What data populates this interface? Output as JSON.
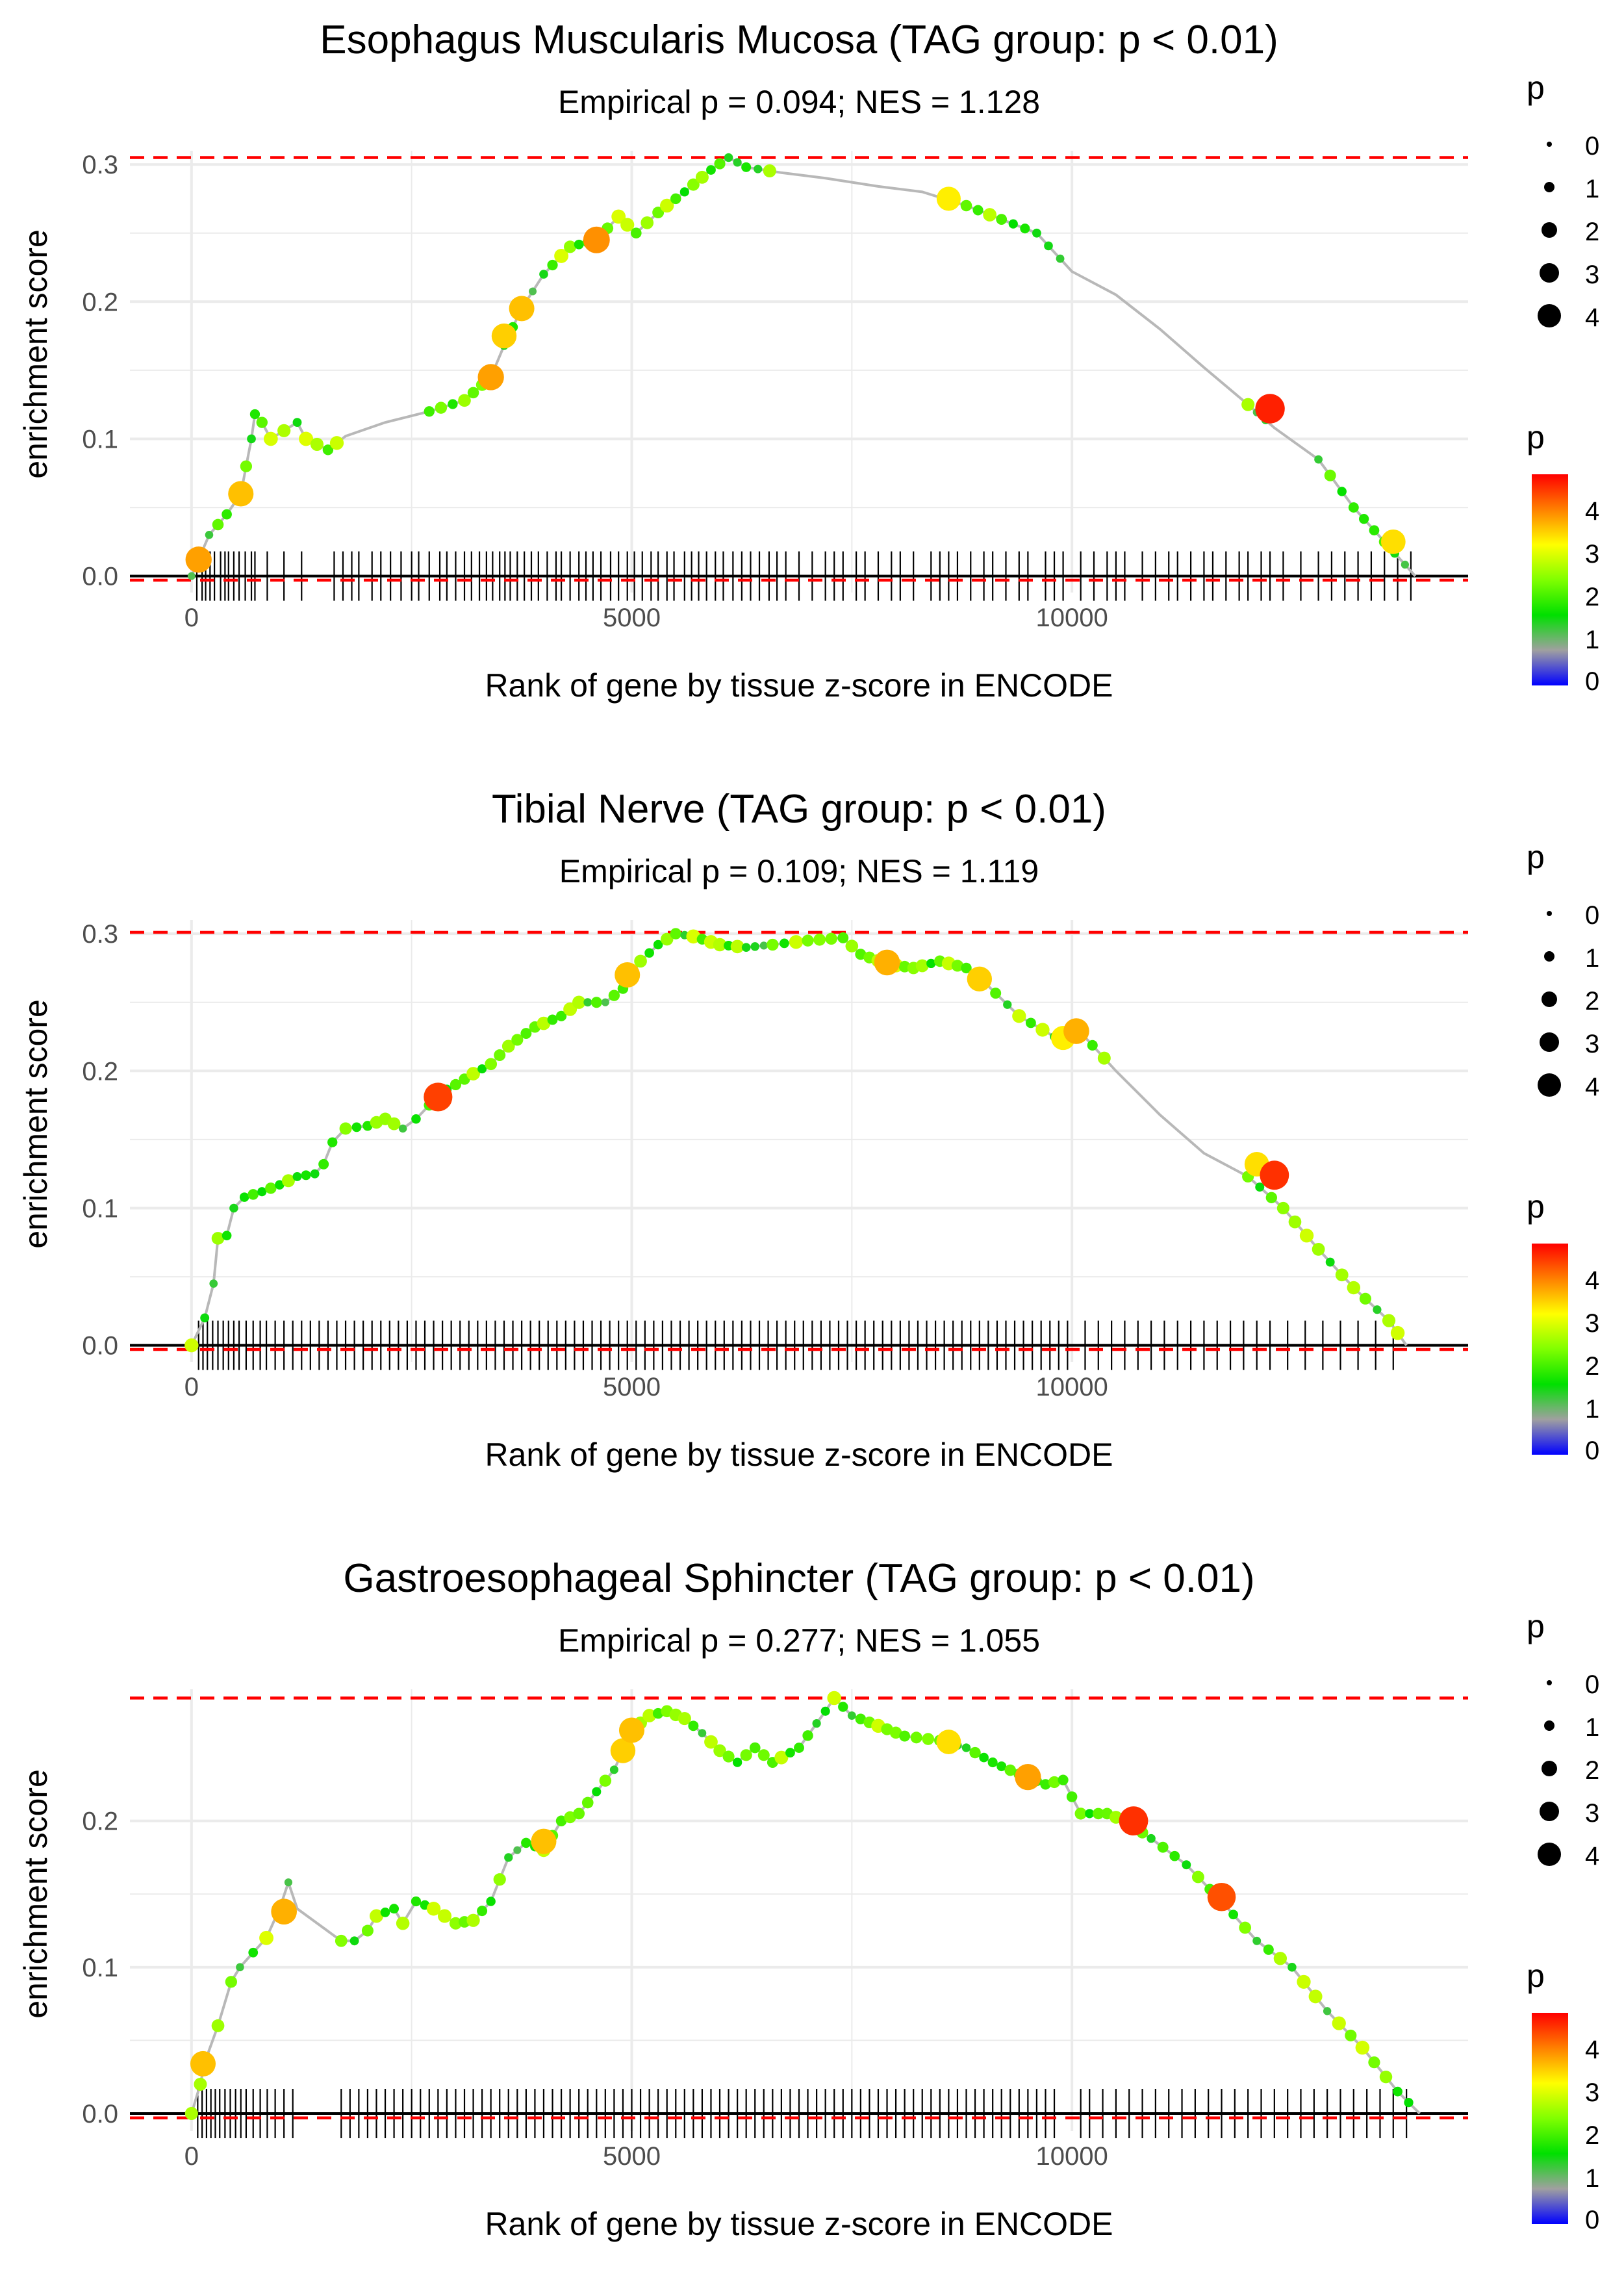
{
  "legend_title": "p",
  "size_legend_labels": [
    "0",
    "1",
    "2",
    "3",
    "4"
  ],
  "color_legend_labels": [
    "4",
    "3",
    "2",
    "1",
    "0"
  ],
  "colorbar_stops": [
    "#ff0000",
    "#ff8000",
    "#ffff00",
    "#80ff00",
    "#00e000",
    "#a0a0a0",
    "#0000ff"
  ],
  "colors": {
    "grid": "#ebebeb",
    "curve": "#b8b8b8",
    "threshold_line": "#ff0000",
    "rug": "#000000",
    "axis_text": "#4d4d4d"
  },
  "chart_data": [
    {
      "type": "line",
      "title": "Esophagus Muscularis Mucosa (TAG group: p < 0.01)",
      "subtitle": "Empirical p = 0.094; NES = 1.128",
      "xlabel": "Rank of gene by tissue z-score in ENCODE",
      "ylabel": "enrichment score",
      "xlim": [
        -700,
        14500
      ],
      "ylim": [
        -0.012,
        0.31
      ],
      "x_ticks": [
        0,
        5000,
        10000
      ],
      "x_tick_labels": [
        "0",
        "5000",
        "10000"
      ],
      "y_ticks": [
        0.0,
        0.1,
        0.2,
        0.3
      ],
      "y_tick_labels": [
        "0.0",
        "0.1",
        "0.2",
        "0.3"
      ],
      "max_es": 0.305,
      "min_es": -0.003,
      "curve": [
        [
          0,
          0
        ],
        [
          80,
          0.012
        ],
        [
          200,
          0.03
        ],
        [
          400,
          0.045
        ],
        [
          560,
          0.06
        ],
        [
          620,
          0.08
        ],
        [
          680,
          0.1
        ],
        [
          720,
          0.118
        ],
        [
          800,
          0.112
        ],
        [
          900,
          0.1
        ],
        [
          1050,
          0.106
        ],
        [
          1200,
          0.112
        ],
        [
          1300,
          0.1
        ],
        [
          1550,
          0.092
        ],
        [
          1750,
          0.102
        ],
        [
          2200,
          0.112
        ],
        [
          2700,
          0.12
        ],
        [
          3100,
          0.128
        ],
        [
          3400,
          0.145
        ],
        [
          3550,
          0.168
        ],
        [
          3750,
          0.195
        ],
        [
          4000,
          0.22
        ],
        [
          4300,
          0.24
        ],
        [
          4600,
          0.245
        ],
        [
          4850,
          0.262
        ],
        [
          5050,
          0.25
        ],
        [
          5300,
          0.265
        ],
        [
          5600,
          0.28
        ],
        [
          5900,
          0.296
        ],
        [
          6100,
          0.305
        ],
        [
          6300,
          0.298
        ],
        [
          6700,
          0.294
        ],
        [
          7200,
          0.29
        ],
        [
          7800,
          0.284
        ],
        [
          8300,
          0.28
        ],
        [
          8800,
          0.27
        ],
        [
          9200,
          0.26
        ],
        [
          9600,
          0.25
        ],
        [
          10000,
          0.222
        ],
        [
          10500,
          0.205
        ],
        [
          11000,
          0.18
        ],
        [
          11500,
          0.152
        ],
        [
          12000,
          0.125
        ],
        [
          12300,
          0.108
        ],
        [
          12800,
          0.085
        ],
        [
          13200,
          0.05
        ],
        [
          13550,
          0.025
        ],
        [
          13900,
          0
        ]
      ],
      "highlight_points": [
        {
          "x": 80,
          "y": 0.012,
          "p": 3.8
        },
        {
          "x": 560,
          "y": 0.06,
          "p": 3.6
        },
        {
          "x": 3400,
          "y": 0.145,
          "p": 3.8
        },
        {
          "x": 3550,
          "y": 0.175,
          "p": 3.5
        },
        {
          "x": 3750,
          "y": 0.195,
          "p": 3.6
        },
        {
          "x": 4600,
          "y": 0.245,
          "p": 3.9
        },
        {
          "x": 8600,
          "y": 0.275,
          "p": 3.3
        },
        {
          "x": 12250,
          "y": 0.122,
          "p": 4.6
        },
        {
          "x": 13650,
          "y": 0.025,
          "p": 3.4
        }
      ],
      "rug_x": [
        60,
        120,
        160,
        210,
        260,
        330,
        380,
        420,
        480,
        540,
        610,
        680,
        720,
        860,
        1050,
        1250,
        1620,
        1720,
        1820,
        1900,
        2050,
        2150,
        2260,
        2380,
        2500,
        2580,
        2700,
        2820,
        2900,
        3000,
        3100,
        3180,
        3270,
        3350,
        3420,
        3500,
        3560,
        3620,
        3700,
        3780,
        3860,
        3940,
        4040,
        4140,
        4200,
        4300,
        4400,
        4480,
        4560,
        4650,
        4760,
        4850,
        4950,
        5030,
        5120,
        5220,
        5300,
        5400,
        5480,
        5600,
        5680,
        5760,
        5850,
        5950,
        6040,
        6150,
        6250,
        6350,
        6450,
        6560,
        6650,
        6750,
        6900,
        7050,
        7200,
        7300,
        7400,
        7550,
        7650,
        7800,
        7950,
        8050,
        8200,
        8400,
        8500,
        8600,
        8700,
        8850,
        9000,
        9100,
        9250,
        9400,
        9500,
        9700,
        9800,
        9900,
        10100,
        10250,
        10400,
        10500,
        10600,
        10800,
        10950,
        11100,
        11200,
        11350,
        11500,
        11600,
        11750,
        11900,
        12000,
        12150,
        12250,
        12400,
        12600,
        12800,
        12950,
        13100,
        13250,
        13400,
        13550,
        13700,
        13850
      ]
    },
    {
      "type": "line",
      "title": "Tibial Nerve (TAG group: p < 0.01)",
      "subtitle": "Empirical p = 0.109; NES = 1.119",
      "xlabel": "Rank of gene by tissue z-score in ENCODE",
      "ylabel": "enrichment score",
      "xlim": [
        -700,
        14500
      ],
      "ylim": [
        -0.012,
        0.31
      ],
      "x_ticks": [
        0,
        5000,
        10000
      ],
      "x_tick_labels": [
        "0",
        "5000",
        "10000"
      ],
      "y_ticks": [
        0.0,
        0.1,
        0.2,
        0.3
      ],
      "y_tick_labels": [
        "0.0",
        "0.1",
        "0.2",
        "0.3"
      ],
      "max_es": 0.301,
      "min_es": -0.003,
      "curve": [
        [
          0,
          0
        ],
        [
          150,
          0.02
        ],
        [
          250,
          0.045
        ],
        [
          300,
          0.078
        ],
        [
          400,
          0.08
        ],
        [
          480,
          0.1
        ],
        [
          600,
          0.108
        ],
        [
          800,
          0.112
        ],
        [
          1000,
          0.117
        ],
        [
          1200,
          0.123
        ],
        [
          1400,
          0.125
        ],
        [
          1500,
          0.132
        ],
        [
          1600,
          0.148
        ],
        [
          1750,
          0.158
        ],
        [
          2000,
          0.16
        ],
        [
          2200,
          0.165
        ],
        [
          2400,
          0.158
        ],
        [
          2550,
          0.165
        ],
        [
          2700,
          0.175
        ],
        [
          2800,
          0.183
        ],
        [
          3000,
          0.19
        ],
        [
          3200,
          0.198
        ],
        [
          3400,
          0.205
        ],
        [
          3600,
          0.218
        ],
        [
          3900,
          0.232
        ],
        [
          4200,
          0.24
        ],
        [
          4400,
          0.25
        ],
        [
          4700,
          0.25
        ],
        [
          4900,
          0.26
        ],
        [
          5100,
          0.28
        ],
        [
          5300,
          0.292
        ],
        [
          5500,
          0.3
        ],
        [
          5700,
          0.298
        ],
        [
          6000,
          0.292
        ],
        [
          6300,
          0.29
        ],
        [
          6600,
          0.292
        ],
        [
          7000,
          0.295
        ],
        [
          7400,
          0.297
        ],
        [
          7600,
          0.285
        ],
        [
          7900,
          0.278
        ],
        [
          8200,
          0.275
        ],
        [
          8500,
          0.28
        ],
        [
          8800,
          0.275
        ],
        [
          9000,
          0.265
        ],
        [
          9400,
          0.24
        ],
        [
          9800,
          0.225
        ],
        [
          10100,
          0.228
        ],
        [
          10500,
          0.2
        ],
        [
          11000,
          0.168
        ],
        [
          11500,
          0.14
        ],
        [
          12000,
          0.123
        ],
        [
          12400,
          0.1
        ],
        [
          12800,
          0.07
        ],
        [
          13200,
          0.042
        ],
        [
          13600,
          0.018
        ],
        [
          13800,
          0
        ]
      ],
      "highlight_points": [
        {
          "x": 2800,
          "y": 0.181,
          "p": 4.4
        },
        {
          "x": 4950,
          "y": 0.27,
          "p": 3.6
        },
        {
          "x": 7900,
          "y": 0.279,
          "p": 3.7
        },
        {
          "x": 8950,
          "y": 0.267,
          "p": 3.5
        },
        {
          "x": 9900,
          "y": 0.224,
          "p": 3.3
        },
        {
          "x": 10050,
          "y": 0.229,
          "p": 3.7
        },
        {
          "x": 12100,
          "y": 0.132,
          "p": 3.4
        },
        {
          "x": 12300,
          "y": 0.124,
          "p": 4.5
        }
      ],
      "rug_x": [
        80,
        130,
        180,
        240,
        300,
        360,
        420,
        480,
        540,
        620,
        700,
        780,
        850,
        950,
        1050,
        1150,
        1250,
        1350,
        1450,
        1550,
        1650,
        1750,
        1850,
        1950,
        2050,
        2150,
        2250,
        2350,
        2450,
        2550,
        2650,
        2750,
        2850,
        2950,
        3050,
        3150,
        3250,
        3350,
        3450,
        3550,
        3650,
        3750,
        3850,
        3950,
        4050,
        4150,
        4250,
        4350,
        4450,
        4550,
        4650,
        4750,
        4850,
        4950,
        5050,
        5150,
        5250,
        5350,
        5450,
        5550,
        5650,
        5750,
        5850,
        5950,
        6050,
        6150,
        6250,
        6350,
        6450,
        6550,
        6650,
        6750,
        6850,
        6950,
        7050,
        7150,
        7250,
        7350,
        7450,
        7550,
        7650,
        7750,
        7850,
        7950,
        8050,
        8150,
        8250,
        8350,
        8450,
        8550,
        8650,
        8750,
        8850,
        8950,
        9050,
        9150,
        9250,
        9350,
        9450,
        9550,
        9650,
        9750,
        9850,
        9950,
        10150,
        10300,
        10450,
        10600,
        10750,
        10900,
        11050,
        11200,
        11350,
        11500,
        11650,
        11800,
        11950,
        12100,
        12250,
        12450,
        12650,
        12850,
        13050,
        13250,
        13450,
        13650
      ]
    },
    {
      "type": "line",
      "title": "Gastroesophageal Sphincter (TAG group: p < 0.01)",
      "subtitle": "Empirical p = 0.277; NES = 1.055",
      "xlabel": "Rank of gene by tissue z-score in ENCODE",
      "ylabel": "enrichment score",
      "xlim": [
        -700,
        14500
      ],
      "ylim": [
        -0.012,
        0.29
      ],
      "x_ticks": [
        0,
        5000,
        10000
      ],
      "x_tick_labels": [
        "0",
        "5000",
        "10000"
      ],
      "y_ticks": [
        0.0,
        0.1,
        0.2
      ],
      "y_tick_labels": [
        "0.0",
        "0.1",
        "0.2"
      ],
      "max_es": 0.284,
      "min_es": -0.003,
      "curve": [
        [
          0,
          0
        ],
        [
          100,
          0.02
        ],
        [
          150,
          0.035
        ],
        [
          300,
          0.06
        ],
        [
          450,
          0.09
        ],
        [
          550,
          0.1
        ],
        [
          700,
          0.11
        ],
        [
          850,
          0.12
        ],
        [
          1000,
          0.14
        ],
        [
          1100,
          0.158
        ],
        [
          1200,
          0.14
        ],
        [
          1700,
          0.118
        ],
        [
          1850,
          0.118
        ],
        [
          2000,
          0.125
        ],
        [
          2100,
          0.135
        ],
        [
          2300,
          0.14
        ],
        [
          2400,
          0.13
        ],
        [
          2550,
          0.145
        ],
        [
          2750,
          0.14
        ],
        [
          3000,
          0.13
        ],
        [
          3200,
          0.132
        ],
        [
          3400,
          0.145
        ],
        [
          3600,
          0.175
        ],
        [
          3800,
          0.185
        ],
        [
          4000,
          0.18
        ],
        [
          4200,
          0.2
        ],
        [
          4400,
          0.205
        ],
        [
          4600,
          0.22
        ],
        [
          4800,
          0.235
        ],
        [
          4900,
          0.248
        ],
        [
          5000,
          0.262
        ],
        [
          5200,
          0.272
        ],
        [
          5400,
          0.275
        ],
        [
          5600,
          0.27
        ],
        [
          5800,
          0.26
        ],
        [
          6000,
          0.248
        ],
        [
          6200,
          0.24
        ],
        [
          6400,
          0.25
        ],
        [
          6600,
          0.24
        ],
        [
          6900,
          0.25
        ],
        [
          7200,
          0.275
        ],
        [
          7300,
          0.284
        ],
        [
          7500,
          0.272
        ],
        [
          7800,
          0.265
        ],
        [
          8100,
          0.258
        ],
        [
          8500,
          0.255
        ],
        [
          8800,
          0.25
        ],
        [
          9100,
          0.24
        ],
        [
          9400,
          0.232
        ],
        [
          9700,
          0.225
        ],
        [
          9900,
          0.228
        ],
        [
          10100,
          0.205
        ],
        [
          10400,
          0.205
        ],
        [
          10600,
          0.2
        ],
        [
          10900,
          0.188
        ],
        [
          11300,
          0.17
        ],
        [
          11700,
          0.145
        ],
        [
          12100,
          0.118
        ],
        [
          12500,
          0.1
        ],
        [
          12900,
          0.07
        ],
        [
          13300,
          0.045
        ],
        [
          13700,
          0.015
        ],
        [
          13950,
          0
        ]
      ],
      "highlight_points": [
        {
          "x": 130,
          "y": 0.034,
          "p": 3.6
        },
        {
          "x": 1050,
          "y": 0.138,
          "p": 3.7
        },
        {
          "x": 4000,
          "y": 0.186,
          "p": 3.6
        },
        {
          "x": 4900,
          "y": 0.248,
          "p": 3.5
        },
        {
          "x": 5000,
          "y": 0.262,
          "p": 3.6
        },
        {
          "x": 8600,
          "y": 0.254,
          "p": 3.4
        },
        {
          "x": 9500,
          "y": 0.23,
          "p": 3.8
        },
        {
          "x": 10700,
          "y": 0.2,
          "p": 4.5
        },
        {
          "x": 11700,
          "y": 0.148,
          "p": 4.3
        }
      ],
      "rug_x": [
        70,
        120,
        170,
        220,
        270,
        320,
        380,
        440,
        500,
        560,
        620,
        700,
        780,
        860,
        950,
        1050,
        1150,
        1700,
        1800,
        1900,
        2000,
        2100,
        2200,
        2300,
        2400,
        2500,
        2600,
        2700,
        2800,
        2900,
        3000,
        3100,
        3200,
        3300,
        3400,
        3500,
        3600,
        3700,
        3800,
        3900,
        4000,
        4100,
        4200,
        4300,
        4400,
        4500,
        4600,
        4700,
        4800,
        4900,
        5000,
        5100,
        5200,
        5300,
        5400,
        5500,
        5600,
        5700,
        5800,
        5900,
        6000,
        6100,
        6200,
        6300,
        6400,
        6500,
        6600,
        6700,
        6800,
        6900,
        7000,
        7100,
        7200,
        7300,
        7400,
        7500,
        7600,
        7700,
        7800,
        7900,
        8000,
        8100,
        8200,
        8300,
        8400,
        8500,
        8600,
        8700,
        8800,
        8900,
        9000,
        9100,
        9200,
        9300,
        9400,
        9500,
        9600,
        9700,
        9800,
        10100,
        10200,
        10350,
        10500,
        10650,
        10800,
        10950,
        11100,
        11250,
        11400,
        11550,
        11700,
        11850,
        12000,
        12150,
        12300,
        12450,
        12600,
        12750,
        12900,
        13050,
        13200,
        13350,
        13500,
        13650,
        13800
      ]
    }
  ]
}
